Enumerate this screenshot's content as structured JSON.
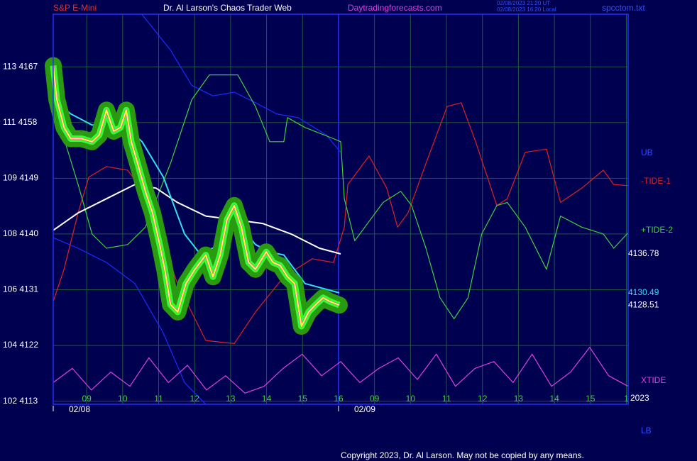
{
  "header": {
    "symbol": "S&P E-Mini",
    "title": "Dr. Al Larson's Chaos Trader Web",
    "site": "Daytradingforecasts.com",
    "time_ut": "02/08/2023 21:20 UT",
    "time_local": "02/08/2023 16:20 Local",
    "file": "spcctom.txt"
  },
  "footer": "Copyright 2023, Dr. Al Larson. May not be copied by any means.",
  "chart_data": {
    "type": "line",
    "xlim": [
      8.07,
      24.05
    ],
    "ylim": [
      4112.5,
      4175.5
    ],
    "grid": true,
    "session_break": 16,
    "yticks": [
      {
        "value": 4167,
        "label": "113  4167"
      },
      {
        "value": 4158,
        "label": "111  4158"
      },
      {
        "value": 4149,
        "label": "109  4149"
      },
      {
        "value": 4140,
        "label": "108  4140"
      },
      {
        "value": 4131,
        "label": "106  4131"
      },
      {
        "value": 4122,
        "label": "104  4122"
      },
      {
        "value": 4113,
        "label": "102  4113"
      }
    ],
    "xticks": [
      {
        "value": 9,
        "label": "09"
      },
      10,
      11,
      12,
      13,
      14,
      15,
      16,
      {
        "value": 17,
        "label": "09"
      },
      {
        "value": 18,
        "label": "10"
      },
      {
        "value": 19,
        "label": "11"
      },
      {
        "value": 20,
        "label": "12"
      },
      {
        "value": 21,
        "label": "13"
      },
      {
        "value": 22,
        "label": "14"
      },
      {
        "value": 23,
        "label": "15"
      },
      {
        "value": 24,
        "label": "1"
      }
    ],
    "dates": [
      {
        "label": "02/08",
        "x": 8.07
      },
      {
        "label": "02/09",
        "x": 16
      }
    ],
    "year": "2023",
    "band_labels": [
      "UB",
      "LB"
    ],
    "series": [
      {
        "name": "UB",
        "color": "#1a2cff",
        "x": [
          8.76,
          9.55,
          10.53,
          11.33,
          11.92,
          12.51,
          13.1,
          13.69,
          14.28,
          14.87,
          15.66,
          16.06
        ],
        "values": [
          4175.5,
          4175.5,
          4175.5,
          4169.7,
          4164.0,
          4162.3,
          4162.9,
          4161.2,
          4159.4,
          4158.8,
          4156.0,
          4153.2
        ]
      },
      {
        "name": "LB",
        "color": "#1a2cff",
        "x": [
          8.07,
          8.76,
          9.55,
          10.34,
          11.13,
          11.72,
          12.31
        ],
        "values": [
          4139.4,
          4137.7,
          4135.4,
          4132.0,
          4124.0,
          4116.0,
          4112.5
        ]
      },
      {
        "name": "-TIDE-1",
        "color": "#e02020",
        "x": [
          8.07,
          8.37,
          8.76,
          9.06,
          9.55,
          10.14,
          10.73,
          11.52,
          12.31,
          13.1,
          13.69,
          14.48,
          15.27,
          15.86,
          16.16,
          16.26,
          16.85,
          17.34,
          17.64,
          17.93,
          18.43,
          19.02,
          19.41,
          19.81,
          20.4,
          20.69,
          21.19,
          21.78,
          22.17,
          22.76,
          23.36,
          23.65,
          24.05
        ],
        "values": [
          4129.1,
          4134.3,
          4143.4,
          4149.2,
          4150.9,
          4150.3,
          4145.7,
          4132.0,
          4122.8,
          4122.3,
          4127.4,
          4133.1,
          4136.0,
          4135.4,
          4141.1,
          4148.0,
          4152.6,
          4147.4,
          4141.1,
          4143.4,
          4151.4,
          4160.6,
          4161.2,
          4154.9,
          4144.6,
          4145.7,
          4153.2,
          4153.7,
          4145.1,
          4147.4,
          4150.3,
          4148.0,
          4147.8
        ]
      },
      {
        "name": "+TIDE-2",
        "color": "#40d040",
        "x": [
          8.07,
          8.46,
          8.76,
          9.15,
          9.55,
          10.14,
          10.63,
          11.33,
          11.92,
          12.41,
          13.2,
          13.69,
          14.09,
          14.48,
          14.58,
          15.07,
          15.86,
          16.06,
          16.16,
          16.45,
          17.24,
          17.73,
          18.03,
          18.43,
          18.82,
          19.21,
          19.6,
          19.98,
          20.4,
          20.69,
          21.19,
          21.78,
          22.17,
          22.76,
          23.36,
          23.65,
          24.05
        ],
        "values": [
          4160.6,
          4153.7,
          4148.0,
          4140.0,
          4137.7,
          4138.3,
          4141.1,
          4151.4,
          4161.7,
          4165.7,
          4165.7,
          4160.6,
          4154.9,
          4154.9,
          4158.8,
          4157.2,
          4155.4,
          4154.9,
          4145.7,
          4138.9,
          4145.1,
          4146.9,
          4144.6,
          4137.7,
          4129.7,
          4126.3,
          4129.7,
          4140.0,
          4144.6,
          4145.1,
          4141.1,
          4134.3,
          4142.9,
          4141.1,
          4140.0,
          4137.7,
          4140.2
        ]
      },
      {
        "name": "XTIDE",
        "color": "#e040e0",
        "x": [
          8.07,
          8.6,
          9.13,
          9.67,
          10.2,
          10.73,
          11.27,
          11.8,
          12.33,
          12.86,
          13.4,
          13.93,
          14.46,
          14.99,
          15.53,
          16.06,
          16.59,
          17.12,
          17.66,
          18.19,
          18.72,
          19.25,
          19.79,
          20.32,
          20.85,
          21.38,
          21.92,
          22.45,
          22.98,
          23.51,
          24.05
        ],
        "values": [
          4116.0,
          4118.3,
          4114.8,
          4117.7,
          4115.4,
          4120.0,
          4116.0,
          4118.8,
          4114.8,
          4117.1,
          4114.3,
          4115.4,
          4118.3,
          4120.6,
          4117.1,
          4119.4,
          4116.0,
          4118.3,
          4120.0,
          4116.5,
          4120.6,
          4115.4,
          4118.3,
          4119.4,
          4116.0,
          4120.6,
          4115.4,
          4117.7,
          4121.7,
          4117.1,
          4115.4
        ]
      },
      {
        "color": "#ffffff",
        "x": [
          8.07,
          8.76,
          9.55,
          10.34,
          10.93,
          11.52,
          12.31,
          13.1,
          13.89,
          14.68,
          15.47,
          16.06
        ],
        "values": [
          4140.6,
          4143.4,
          4145.7,
          4148.0,
          4147.4,
          4145.1,
          4142.9,
          4142.3,
          4141.7,
          4140.0,
          4137.7,
          4136.78
        ]
      },
      {
        "color": "#30e0f0",
        "x": [
          8.07,
          8.56,
          9.15,
          10.04,
          10.54,
          11.13,
          11.72,
          12.11,
          12.51,
          12.9,
          13.3,
          13.69,
          14.09,
          14.48,
          15.07,
          16.02
        ],
        "values": [
          4161.7,
          4159.4,
          4157.6,
          4157.6,
          4154.9,
          4149.2,
          4140.0,
          4137.1,
          4137.7,
          4141.1,
          4141.1,
          4138.3,
          4137.1,
          4136.6,
          4132.0,
          4130.49
        ]
      },
      {
        "color": "#ffff30",
        "x": [
          8.07,
          8.17,
          8.37,
          8.56,
          8.86,
          9.15,
          9.35,
          9.55,
          9.75,
          9.94,
          10.1,
          10.24,
          10.44,
          10.63,
          10.83,
          11.03,
          11.17,
          11.33,
          11.53,
          11.76,
          12.01,
          12.31,
          12.51,
          12.71,
          12.9,
          13.1,
          13.3,
          13.5,
          13.69,
          13.99,
          14.18,
          14.38,
          14.58,
          14.78,
          14.97,
          15.17,
          15.37,
          15.57,
          15.76,
          16.02
        ],
        "values": [
          4167.2,
          4161.7,
          4157.2,
          4155.4,
          4155.4,
          4154.9,
          4156.0,
          4160.0,
          4156.6,
          4157.2,
          4160.0,
          4154.9,
          4150.9,
          4146.9,
          4143.4,
          4138.3,
          4134.3,
          4128.6,
          4127.4,
          4132.0,
          4134.3,
          4136.6,
          4133.1,
          4136.6,
          4142.3,
          4144.6,
          4141.1,
          4135.4,
          4134.3,
          4137.1,
          4135.4,
          4134.9,
          4133.1,
          4132.0,
          4125.1,
          4127.4,
          4128.6,
          4129.7,
          4129.1,
          4128.51
        ]
      }
    ],
    "last_labels": [
      {
        "label": "4136.78",
        "value": 4136.78,
        "color": "#ffffff"
      },
      {
        "label": "4130.49",
        "value": 4130.49,
        "color": "#30e0f0"
      },
      {
        "label": "4128.51",
        "value": 4128.51,
        "color": "#ffffff"
      }
    ]
  }
}
